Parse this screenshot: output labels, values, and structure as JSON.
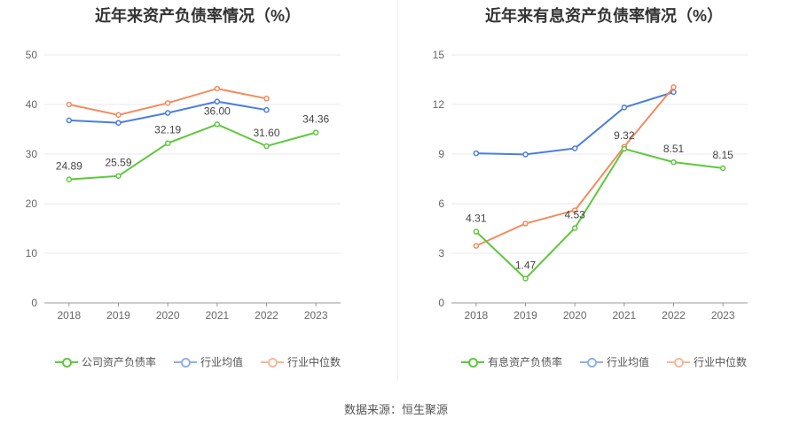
{
  "source_text": "数据来源：恒生聚源",
  "colors": {
    "company": "#5cc93b",
    "avg": "#4a7fdb",
    "median": "#f28c5e",
    "grid": "#e9e9f2",
    "axis": "#999999",
    "text": "#666666"
  },
  "charts": [
    {
      "title": "近年来资产负债率情况（%）",
      "legend": [
        "公司资产负债率",
        "行业均值",
        "行业中位数"
      ]
    },
    {
      "title": "近年来有息资产负债率情况（%）",
      "legend": [
        "有息资产负债率",
        "行业均值",
        "行业中位数"
      ]
    }
  ],
  "chart_data": [
    {
      "type": "line",
      "title": "近年来资产负债率情况（%）",
      "categories": [
        "2018",
        "2019",
        "2020",
        "2021",
        "2022",
        "2023"
      ],
      "ylim": [
        0,
        50
      ],
      "yticks": [
        0,
        10,
        20,
        30,
        40,
        50
      ],
      "grid": true,
      "legend_position": "bottom",
      "series": [
        {
          "name": "公司资产负债率",
          "values": [
            24.89,
            25.59,
            32.19,
            36.0,
            31.6,
            34.36
          ],
          "labels": [
            "24.89",
            "25.59",
            "32.19",
            "36.00",
            "31.60",
            "34.36"
          ],
          "color": "#5cc93b"
        },
        {
          "name": "行业均值",
          "values": [
            36.8,
            36.3,
            38.3,
            40.6,
            38.9,
            null
          ],
          "color": "#4a7fdb"
        },
        {
          "name": "行业中位数",
          "values": [
            40.0,
            37.9,
            40.3,
            43.2,
            41.2,
            null
          ],
          "color": "#f28c5e"
        }
      ]
    },
    {
      "type": "line",
      "title": "近年来有息资产负债率情况（%）",
      "categories": [
        "2018",
        "2019",
        "2020",
        "2021",
        "2022",
        "2023"
      ],
      "ylim": [
        0,
        15
      ],
      "yticks": [
        0,
        3,
        6,
        9,
        12,
        15
      ],
      "grid": true,
      "legend_position": "bottom",
      "series": [
        {
          "name": "有息资产负债率",
          "values": [
            4.31,
            1.47,
            4.53,
            9.32,
            8.51,
            8.15
          ],
          "labels": [
            "4.31",
            "1.47",
            "4.53",
            "9.32",
            "8.51",
            "8.15"
          ],
          "color": "#5cc93b"
        },
        {
          "name": "行业均值",
          "values": [
            9.05,
            8.98,
            9.35,
            11.82,
            12.75,
            null
          ],
          "color": "#4a7fdb"
        },
        {
          "name": "行业中位数",
          "values": [
            3.45,
            4.8,
            5.6,
            9.45,
            13.05,
            null
          ],
          "color": "#f28c5e"
        }
      ]
    }
  ]
}
